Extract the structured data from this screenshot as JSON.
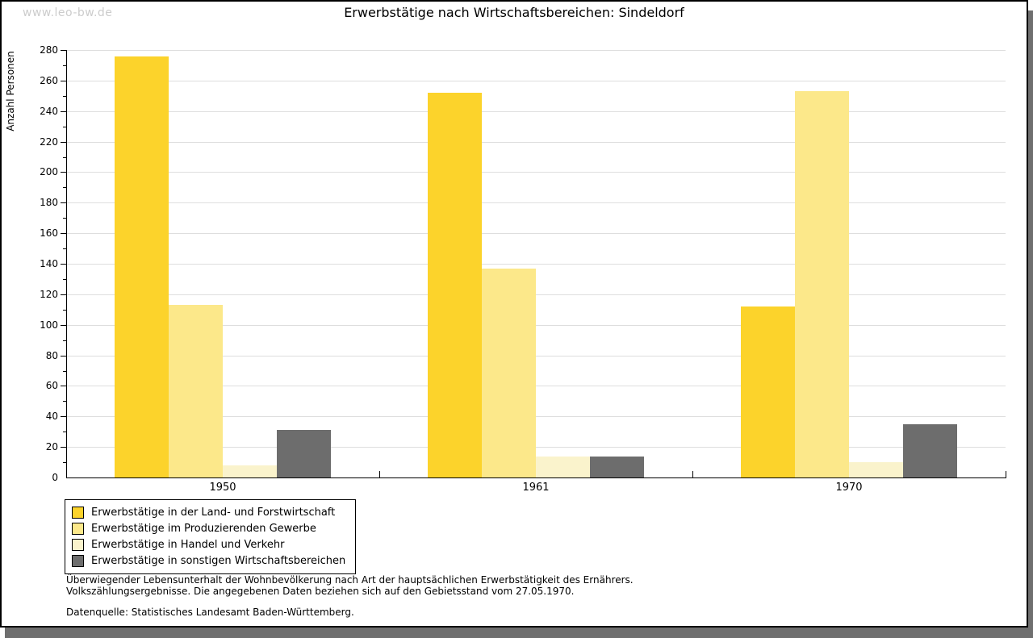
{
  "watermark": "www.leo-bw.de",
  "title": "Erwerbstätige nach Wirtschaftsbereichen: Sindeldorf",
  "chart_data": {
    "type": "bar",
    "title": "Erwerbstätige nach Wirtschaftsbereichen: Sindeldorf",
    "xlabel": "",
    "ylabel": "Anzahl Personen",
    "ylim": [
      0,
      280
    ],
    "ytick_step": 20,
    "ytick_minor_step": 10,
    "grid": true,
    "legend_position": "bottom-left",
    "categories": [
      "1950",
      "1961",
      "1970"
    ],
    "series": [
      {
        "name": "Erwerbstätige in der Land- und Forstwirtschaft",
        "color": "#fcd32b",
        "values": [
          276,
          252,
          112
        ]
      },
      {
        "name": "Erwerbstätige im Produzierenden Gewerbe",
        "color": "#fce88a",
        "values": [
          113,
          137,
          253
        ]
      },
      {
        "name": "Erwerbstätige in Handel und Verkehr",
        "color": "#faf3cc",
        "values": [
          8,
          14,
          10
        ]
      },
      {
        "name": "Erwerbstätige in sonstigen Wirtschaftsbereichen",
        "color": "#6d6d6d",
        "values": [
          31,
          14,
          35
        ]
      }
    ]
  },
  "footnotes": {
    "line1": "Überwiegender Lebensunterhalt der Wohnbevölkerung nach Art der hauptsächlichen Erwerbstätigkeit des Ernährers.",
    "line2": "Volkszählungsergebnisse. Die angegebenen Daten beziehen sich auf den Gebietsstand vom 27.05.1970.",
    "source": "Datenquelle: Statistisches Landesamt Baden-Württemberg."
  },
  "colors": {
    "frame_border": "#000000",
    "frame_shadow": "#6f6f6f",
    "gridline": "#dedede",
    "watermark": "#cccccc",
    "axis": "#000000",
    "background": "#ffffff"
  }
}
